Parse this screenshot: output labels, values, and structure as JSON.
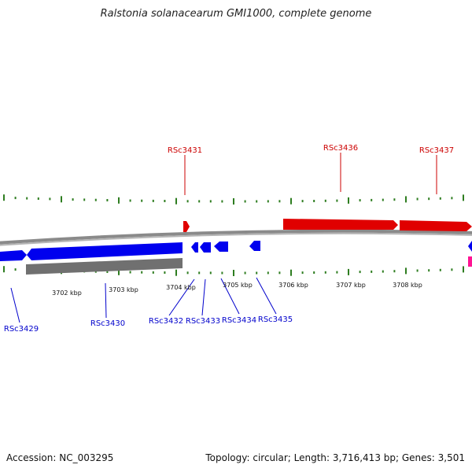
{
  "title": "Ralstonia solanacearum GMI1000, complete genome",
  "footer": {
    "accession": "Accession: NC_003295",
    "summary": "Topology: circular; Length: 3,716,413 bp; Genes: 3,501"
  },
  "colors": {
    "forward_gene": "#ff0000",
    "reverse_gene": "#0000ff",
    "other_feature": "#888888",
    "rna_feature": "#ff1493",
    "backbone": "#8a8a8a",
    "gc_tick": "#2e7d20"
  },
  "scale_labels": [
    "3702 kbp",
    "3703 kbp",
    "3704 kbp",
    "3705 kbp",
    "3706 kbp",
    "3707 kbp",
    "3708 kbp"
  ],
  "gene_labels": {
    "forward": [
      "RSc3431",
      "RSc3436",
      "RSc3437"
    ],
    "reverse": [
      "RSc3429",
      "RSc3430",
      "RSc3432",
      "RSc3433",
      "RSc3434",
      "RSc3435"
    ]
  }
}
